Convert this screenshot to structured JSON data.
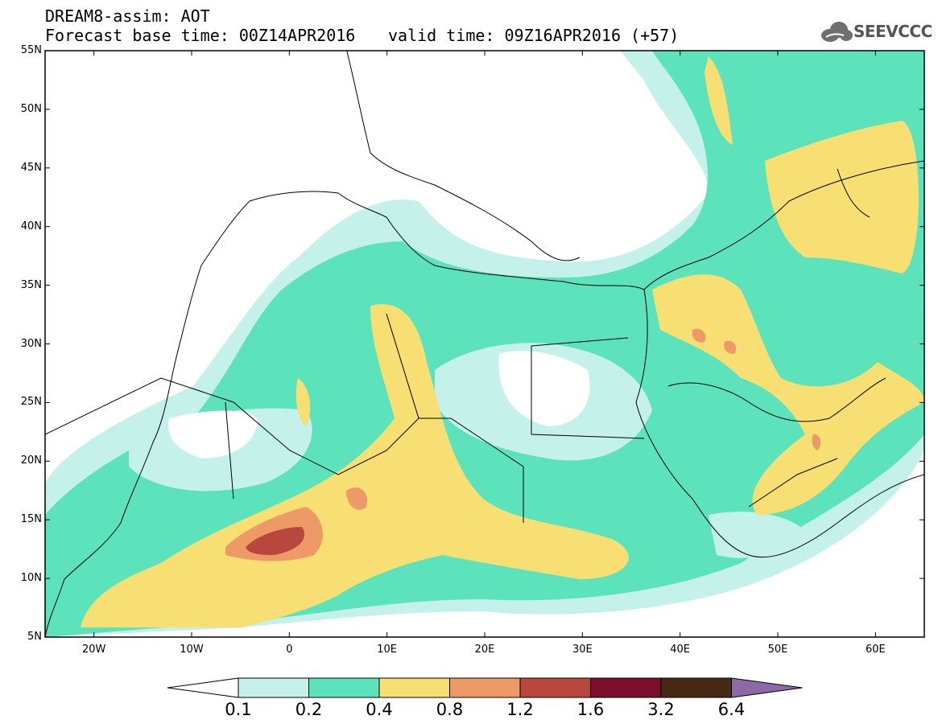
{
  "header": {
    "title": "DREAM8-assim: AOT",
    "base_time": "Forecast base time: 00Z14APR2016",
    "valid_time": "valid time: 09Z16APR2016 (+57)",
    "logo_text": "SEEVCCC"
  },
  "map": {
    "lon_range": [
      -25,
      65
    ],
    "lat_range": [
      5,
      55
    ],
    "lat_ticks": [
      "55N",
      "50N",
      "45N",
      "40N",
      "35N",
      "30N",
      "25N",
      "20N",
      "15N",
      "10N",
      "5N"
    ],
    "lon_ticks": [
      "20W",
      "10W",
      "0",
      "10E",
      "20E",
      "30E",
      "40E",
      "50E",
      "60E"
    ]
  },
  "colorbar": {
    "labels": [
      "0.1",
      "0.2",
      "0.4",
      "0.8",
      "1.2",
      "1.6",
      "3.2",
      "6.4"
    ],
    "colors": [
      "#c4f1ea",
      "#5ce3bb",
      "#f7df73",
      "#ee9a67",
      "#b8483e",
      "#7c0f2e",
      "#472a16",
      "#8f68a7"
    ]
  },
  "colors": {
    "low": "#c4f1ea",
    "medium": "#5ce3bb",
    "high": "#f7df73",
    "very_high": "#ee9a67",
    "extreme": "#b8483e",
    "border": "#000000"
  }
}
